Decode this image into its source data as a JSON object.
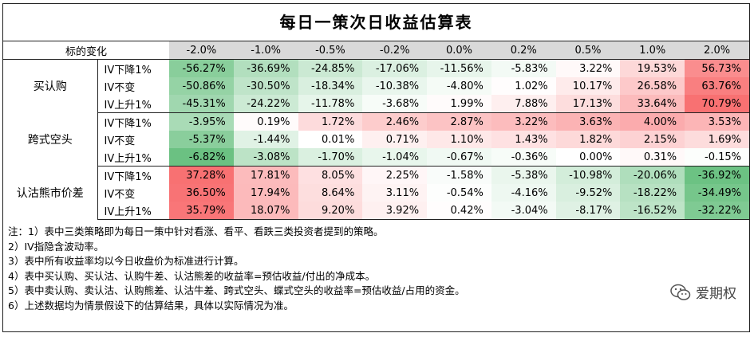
{
  "title": "每日一策次日收益估算表",
  "header": {
    "label": "标的变化",
    "changes": [
      "-2.0%",
      "-1.0%",
      "-0.5%",
      "-0.2%",
      "0.0%",
      "0.2%",
      "0.5%",
      "1.0%",
      "2.0%"
    ]
  },
  "groups": [
    {
      "name": "买认购",
      "rows": [
        {
          "label": "IV下降1%",
          "values": [
            "-56.27%",
            "-36.69%",
            "-24.85%",
            "-17.06%",
            "-11.56%",
            "-5.83%",
            "3.22%",
            "19.53%",
            "56.73%"
          ]
        },
        {
          "label": "IV不变",
          "values": [
            "-50.86%",
            "-30.50%",
            "-18.34%",
            "-10.38%",
            "-4.80%",
            "1.02%",
            "10.17%",
            "26.58%",
            "63.76%"
          ]
        },
        {
          "label": "IV上升1%",
          "values": [
            "-45.31%",
            "-24.22%",
            "-11.78%",
            "-3.68%",
            "1.99%",
            "7.88%",
            "17.13%",
            "33.64%",
            "70.79%"
          ]
        }
      ]
    },
    {
      "name": "跨式空头",
      "rows": [
        {
          "label": "IV下降1%",
          "values": [
            "-3.95%",
            "0.19%",
            "1.72%",
            "2.46%",
            "2.87%",
            "3.22%",
            "3.63%",
            "4.00%",
            "3.53%"
          ]
        },
        {
          "label": "IV不变",
          "values": [
            "-5.37%",
            "-1.44%",
            "0.01%",
            "0.71%",
            "1.10%",
            "1.43%",
            "1.82%",
            "2.15%",
            "1.69%"
          ]
        },
        {
          "label": "IV上升1%",
          "values": [
            "-6.82%",
            "-3.08%",
            "-1.70%",
            "-1.04%",
            "-0.67%",
            "-0.36%",
            "0.00%",
            "0.31%",
            "-0.15%"
          ]
        }
      ]
    },
    {
      "name": "认沽熊市价差",
      "rows": [
        {
          "label": "IV下降1%",
          "values": [
            "37.28%",
            "17.81%",
            "8.05%",
            "2.25%",
            "-1.58%",
            "-5.38%",
            "-10.98%",
            "-20.06%",
            "-36.92%"
          ]
        },
        {
          "label": "IV不变",
          "values": [
            "36.50%",
            "17.94%",
            "8.64%",
            "3.11%",
            "-0.54%",
            "-4.16%",
            "-9.52%",
            "-18.22%",
            "-34.49%"
          ]
        },
        {
          "label": "IV上升1%",
          "values": [
            "35.79%",
            "18.07%",
            "9.20%",
            "3.92%",
            "0.42%",
            "-3.04%",
            "-8.17%",
            "-16.52%",
            "-32.22%"
          ]
        }
      ]
    }
  ],
  "notes": [
    "注：1）表中三类策略即为每日一策中针对看涨、看平、看跌三类投资者提到的策略。",
    "2）IV指隐含波动率。",
    "3）表中所有收益率均以今日收盘价为标准进行计算。",
    "4）表中买认购、买认沽、认购牛差、认沽熊差的收益率=预估收益/付出的净成本。",
    "5）表中卖认购、卖认沽、认购熊差、认沽牛差、跨式空头、蝶式空头的收益率=预估收益/占用的资金。",
    "6）上述数据均为情景假设下的估算结果，具体以实际情况为准。"
  ],
  "brand": {
    "name": "爱期权",
    "icon": "wechat-icon"
  },
  "colors": {
    "positive": "#f8696b",
    "negative": "#63be7b",
    "header_bg": "#d9d9d9"
  }
}
